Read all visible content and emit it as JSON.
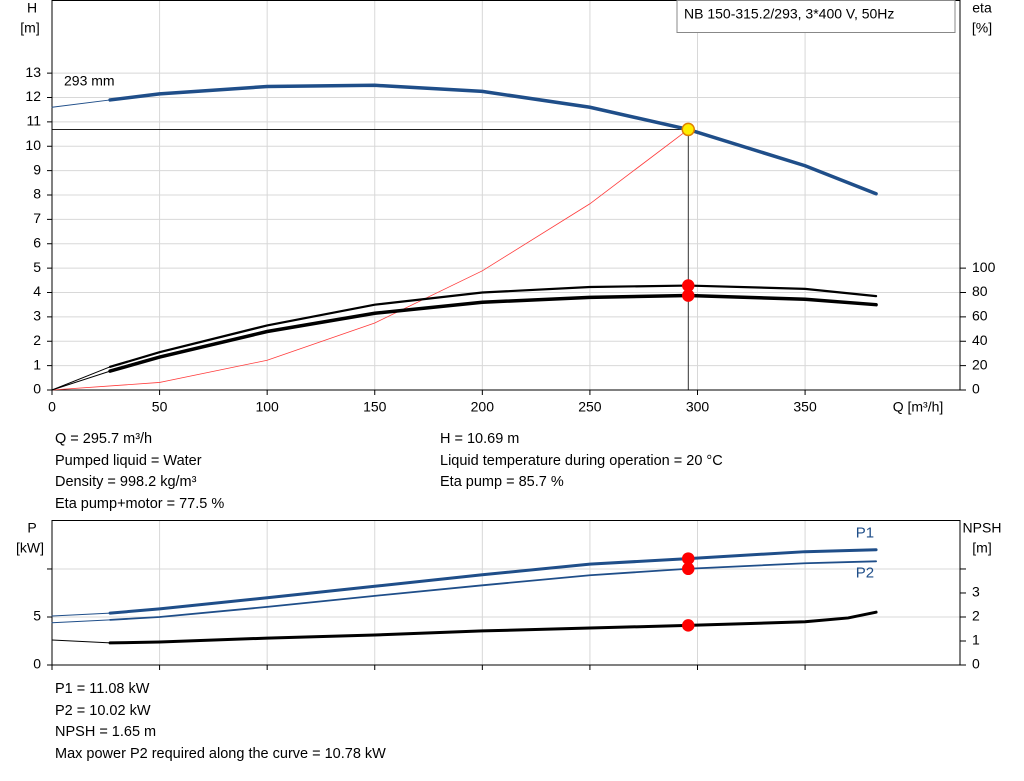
{
  "chart_data": [
    {
      "type": "line",
      "title": "NB 150-315.2/293, 3*400 V, 50Hz",
      "y_label": "H",
      "y_unit": "[m]",
      "y2_label": "eta",
      "y2_unit": "[%]",
      "x_label": "Q [m³/h]",
      "annotation": "293 mm",
      "xlim": [
        0,
        422
      ],
      "xticks": [
        0,
        50,
        100,
        150,
        200,
        250,
        300,
        350
      ],
      "ylim": [
        0,
        16
      ],
      "yticks": [
        0,
        1,
        2,
        3,
        4,
        5,
        6,
        7,
        8,
        9,
        10,
        11,
        12,
        13
      ],
      "y2lim": [
        0,
        320
      ],
      "y2ticks": [
        0,
        20,
        40,
        60,
        80,
        100
      ],
      "grid": true,
      "xtick_labels": true,
      "series": [
        {
          "color": "#1f4e89",
          "width": 1,
          "x": [
            0,
            27
          ],
          "values": [
            11.6,
            11.9
          ]
        },
        {
          "color": "#1f4e89",
          "width": 3.5,
          "x": [
            27,
            50,
            100,
            150,
            200,
            250,
            295.7,
            350,
            383
          ],
          "values": [
            11.9,
            12.15,
            12.45,
            12.5,
            12.25,
            11.6,
            10.69,
            9.2,
            8.05
          ]
        },
        {
          "color": "#ff3b3b",
          "width": 0.8,
          "x": [
            0,
            50,
            100,
            150,
            200,
            250,
            295.7
          ],
          "values": [
            0,
            0.31,
            1.22,
            2.75,
            4.89,
            7.64,
            10.69
          ]
        },
        {
          "color": "#000000",
          "width": 1,
          "axis": "y2",
          "x": [
            0,
            27
          ],
          "values": [
            0,
            19
          ]
        },
        {
          "color": "#000000",
          "width": 2.2,
          "axis": "y2",
          "x": [
            27,
            50,
            100,
            150,
            200,
            250,
            295.7,
            350,
            383
          ],
          "values": [
            19,
            31,
            53,
            70,
            80,
            84.5,
            85.7,
            83,
            77
          ]
        },
        {
          "color": "#000000",
          "width": 1,
          "axis": "y2",
          "x": [
            0,
            27
          ],
          "values": [
            0,
            15.5
          ]
        },
        {
          "color": "#000000",
          "width": 3.5,
          "axis": "y2",
          "x": [
            27,
            50,
            100,
            150,
            200,
            250,
            295.7,
            350,
            383
          ],
          "values": [
            15.5,
            27,
            48,
            63,
            72,
            76,
            77.5,
            74.5,
            70
          ]
        }
      ],
      "points": [
        {
          "x": 295.7,
          "y": 10.69,
          "color": "#ffee00",
          "stroke": "#e08000",
          "guides": true
        },
        {
          "x": 295.7,
          "y": 85.7,
          "axis": "y2",
          "color": "#ff0000",
          "stroke": "#ff0000"
        },
        {
          "x": 295.7,
          "y": 77.5,
          "axis": "y2",
          "color": "#ff0000",
          "stroke": "#ff0000"
        }
      ]
    },
    {
      "type": "line",
      "y_label": "P",
      "y_unit": "[kW]",
      "y2_label": "NPSH",
      "y2_unit": "[m]",
      "xlim": [
        0,
        422
      ],
      "xticks": [
        0,
        50,
        100,
        150,
        200,
        250,
        300,
        350
      ],
      "ylim": [
        0,
        15.1
      ],
      "yticks": [
        0,
        5,
        {
          "value": 10,
          "label": null
        }
      ],
      "y2lim": [
        0,
        6.04
      ],
      "y2ticks": [
        0,
        1,
        2,
        3,
        {
          "value": 4,
          "label": null
        }
      ],
      "grid": true,
      "xtick_labels": false,
      "series": [
        {
          "color": "#1f4e89",
          "width": 1,
          "x": [
            0,
            27
          ],
          "values": [
            5.1,
            5.4
          ]
        },
        {
          "name": "P1",
          "label_side": "above",
          "color": "#1f4e89",
          "width": 3,
          "x": [
            27,
            50,
            100,
            150,
            200,
            250,
            295.7,
            350,
            383
          ],
          "values": [
            5.4,
            5.85,
            7.0,
            8.2,
            9.4,
            10.5,
            11.08,
            11.8,
            12.0
          ]
        },
        {
          "color": "#1f4e89",
          "width": 1,
          "x": [
            0,
            27
          ],
          "values": [
            4.4,
            4.7
          ]
        },
        {
          "name": "P2",
          "label_side": "below",
          "color": "#1f4e89",
          "width": 1.8,
          "x": [
            27,
            50,
            100,
            150,
            200,
            250,
            295.7,
            350,
            383
          ],
          "values": [
            4.7,
            5.0,
            6.05,
            7.2,
            8.3,
            9.35,
            10.02,
            10.6,
            10.8
          ]
        },
        {
          "color": "#000000",
          "width": 1,
          "axis": "y2",
          "x": [
            0,
            27
          ],
          "values": [
            1.04,
            0.92
          ]
        },
        {
          "color": "#000000",
          "width": 3,
          "axis": "y2",
          "x": [
            27,
            50,
            100,
            150,
            200,
            250,
            295.7,
            350,
            370,
            383
          ],
          "values": [
            0.92,
            0.96,
            1.12,
            1.25,
            1.42,
            1.54,
            1.65,
            1.8,
            1.96,
            2.2
          ]
        }
      ],
      "points": [
        {
          "x": 295.7,
          "y": 11.08,
          "color": "#ff0000",
          "stroke": "#ff0000"
        },
        {
          "x": 295.7,
          "y": 10.02,
          "color": "#ff0000",
          "stroke": "#ff0000"
        },
        {
          "x": 295.7,
          "y": 1.65,
          "axis": "y2",
          "color": "#ff0000",
          "stroke": "#ff0000"
        }
      ]
    }
  ],
  "info_top": {
    "left": [
      "Q = 295.7 m³/h",
      "Pumped liquid = Water",
      "Density = 998.2 kg/m³",
      "Eta pump+motor = 77.5 %"
    ],
    "right": [
      "H = 10.69 m",
      "Liquid temperature during operation = 20 °C",
      "Eta pump = 85.7 %"
    ]
  },
  "info_bottom": [
    "P1 = 11.08 kW",
    "P2 = 10.02 kW",
    "NPSH = 1.65 m",
    "Max power P2 required along the curve = 10.78 kW"
  ]
}
